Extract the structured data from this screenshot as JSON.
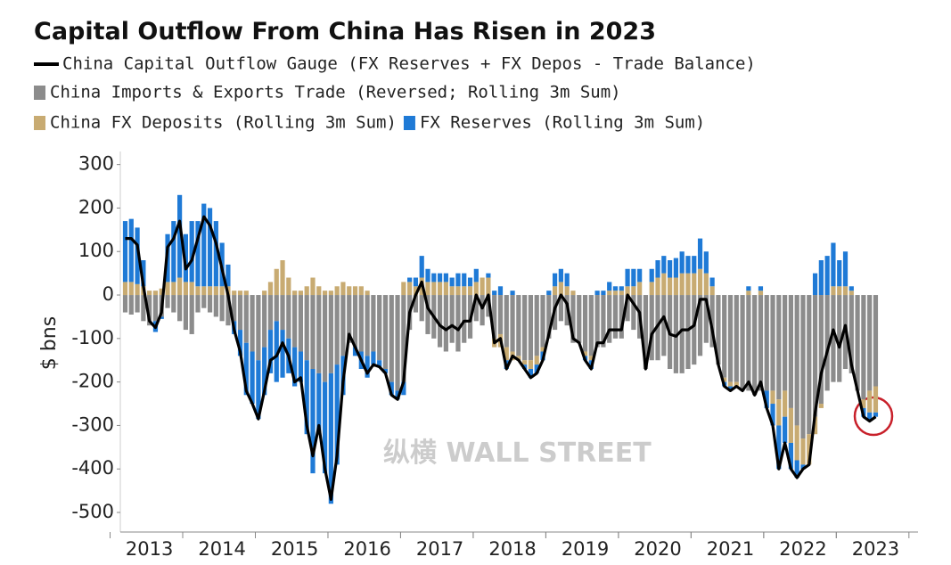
{
  "chart_data": {
    "type": "bar",
    "stacked": true,
    "title": "Capital Outflow From China Has Risen in 2023",
    "y_label": "$ bns",
    "watermark": "纵横 WALL STREET",
    "ylim": [
      -545,
      330
    ],
    "yticks": [
      -500,
      -400,
      -300,
      -200,
      -100,
      0,
      100,
      200,
      300
    ],
    "grid": false,
    "categories": [
      null,
      null,
      null,
      null,
      "2013",
      null,
      null,
      null,
      null,
      null,
      null,
      null,
      null,
      null,
      null,
      null,
      "2014",
      null,
      null,
      null,
      null,
      null,
      null,
      null,
      null,
      null,
      null,
      null,
      "2015",
      null,
      null,
      null,
      null,
      null,
      null,
      null,
      null,
      null,
      null,
      null,
      "2016",
      null,
      null,
      null,
      null,
      null,
      null,
      null,
      null,
      null,
      null,
      null,
      "2017",
      null,
      null,
      null,
      null,
      null,
      null,
      null,
      null,
      null,
      null,
      null,
      "2018",
      null,
      null,
      null,
      null,
      null,
      null,
      null,
      null,
      null,
      null,
      null,
      "2019",
      null,
      null,
      null,
      null,
      null,
      null,
      null,
      null,
      null,
      null,
      null,
      "2020",
      null,
      null,
      null,
      null,
      null,
      null,
      null,
      null,
      null,
      null,
      null,
      "2021",
      null,
      null,
      null,
      null,
      null,
      null,
      null,
      null,
      null,
      null,
      null,
      "2022",
      null,
      null,
      null,
      null,
      null,
      null,
      null,
      null,
      null,
      null,
      null,
      "2023"
    ],
    "series": [
      {
        "name": "China Capital Outflow Gauge (FX Reserves + FX Depos - Trade Balance)",
        "type": "line",
        "color": "#000000",
        "values": [
          130,
          130,
          115,
          20,
          -60,
          -75,
          -40,
          110,
          130,
          170,
          60,
          80,
          130,
          180,
          160,
          120,
          60,
          0,
          -80,
          -130,
          -220,
          -250,
          -285,
          -220,
          -150,
          -140,
          -110,
          -140,
          -200,
          -190,
          -300,
          -370,
          -300,
          -400,
          -470,
          -370,
          -200,
          -90,
          -120,
          -150,
          -180,
          -160,
          -165,
          -180,
          -230,
          -240,
          -200,
          -40,
          0,
          30,
          -30,
          -50,
          -70,
          -80,
          -70,
          -80,
          -60,
          -60,
          0,
          -30,
          0,
          -110,
          -100,
          -170,
          -140,
          -150,
          -170,
          -190,
          -180,
          -150,
          -90,
          -30,
          0,
          -20,
          -100,
          -110,
          -150,
          -170,
          -110,
          -110,
          -80,
          -80,
          -80,
          0,
          -20,
          -40,
          -170,
          -90,
          -70,
          -50,
          -90,
          -95,
          -80,
          -80,
          -70,
          -10,
          -10,
          -80,
          -160,
          -210,
          -220,
          -210,
          -220,
          -200,
          -230,
          -200,
          -260,
          -300,
          -400,
          -340,
          -400,
          -420,
          -400,
          -390,
          -270,
          -180,
          -130,
          -80,
          -120,
          -70,
          -160,
          -220,
          -280,
          -290,
          -280
        ]
      },
      {
        "name": "China Imports & Exports Trade (Reversed; Rolling 3m Sum)",
        "type": "bar",
        "color": "#8c8c8c",
        "values": [
          -40,
          -45,
          -40,
          -60,
          -70,
          -60,
          -50,
          -30,
          -40,
          -60,
          -80,
          -90,
          -40,
          -30,
          -40,
          -50,
          -60,
          -70,
          -60,
          -80,
          -110,
          -130,
          -150,
          -120,
          -80,
          -60,
          -80,
          -100,
          -120,
          -130,
          -150,
          -170,
          -180,
          -200,
          -180,
          -160,
          -140,
          -110,
          -120,
          -130,
          -140,
          -130,
          -150,
          -170,
          -200,
          -220,
          -200,
          -80,
          -40,
          -60,
          -90,
          -100,
          -120,
          -130,
          -110,
          -130,
          -110,
          -100,
          -60,
          -70,
          -50,
          -100,
          -90,
          -120,
          -130,
          -140,
          -150,
          -150,
          -140,
          -120,
          -100,
          -80,
          -60,
          -70,
          -110,
          -110,
          -130,
          -140,
          -120,
          -120,
          -110,
          -100,
          -100,
          -60,
          -80,
          -100,
          -170,
          -150,
          -150,
          -140,
          -170,
          -180,
          -180,
          -170,
          -160,
          -140,
          -110,
          -120,
          -160,
          -190,
          -200,
          -200,
          -220,
          -220,
          -230,
          -220,
          -220,
          -220,
          -240,
          -220,
          -260,
          -300,
          -330,
          -320,
          -280,
          -250,
          -220,
          -200,
          -200,
          -170,
          -180,
          -220,
          -240,
          -220,
          -210
        ]
      },
      {
        "name": "China FX Deposits (Rolling 3m Sum)",
        "type": "bar",
        "color": "#c8ab72",
        "values": [
          30,
          30,
          25,
          20,
          10,
          10,
          15,
          30,
          30,
          40,
          30,
          30,
          20,
          20,
          20,
          20,
          20,
          20,
          10,
          10,
          10,
          0,
          0,
          10,
          30,
          60,
          80,
          40,
          10,
          10,
          20,
          40,
          20,
          10,
          10,
          20,
          30,
          20,
          20,
          20,
          10,
          0,
          0,
          0,
          0,
          0,
          30,
          30,
          20,
          40,
          30,
          30,
          30,
          30,
          20,
          20,
          20,
          20,
          30,
          40,
          40,
          -20,
          -30,
          -30,
          -20,
          -10,
          -10,
          -20,
          -20,
          -10,
          0,
          20,
          30,
          20,
          10,
          0,
          -10,
          -10,
          0,
          0,
          10,
          10,
          10,
          20,
          20,
          30,
          0,
          30,
          40,
          50,
          40,
          40,
          50,
          50,
          50,
          60,
          50,
          20,
          0,
          -10,
          -10,
          -10,
          0,
          10,
          0,
          10,
          0,
          -30,
          -60,
          -60,
          -80,
          -80,
          -60,
          -70,
          -40,
          -10,
          0,
          20,
          20,
          20,
          10,
          0,
          -20,
          -50,
          -60
        ]
      },
      {
        "name": "FX Reserves (Rolling 3m Sum)",
        "type": "bar",
        "color": "#1f7ad6",
        "values": [
          140,
          145,
          130,
          60,
          0,
          -25,
          -5,
          110,
          140,
          190,
          110,
          140,
          150,
          190,
          180,
          150,
          100,
          50,
          -30,
          -60,
          -120,
          -120,
          -135,
          -110,
          -100,
          -140,
          -110,
          -80,
          -90,
          -70,
          -170,
          -240,
          -140,
          -210,
          -300,
          -230,
          -90,
          0,
          -20,
          -40,
          -50,
          -30,
          -15,
          -10,
          -30,
          -20,
          -30,
          10,
          20,
          50,
          30,
          20,
          20,
          20,
          20,
          30,
          30,
          20,
          30,
          0,
          10,
          10,
          20,
          -20,
          10,
          0,
          -10,
          -20,
          -20,
          -20,
          10,
          30,
          30,
          30,
          0,
          0,
          -10,
          -20,
          10,
          10,
          20,
          10,
          10,
          40,
          40,
          30,
          0,
          30,
          40,
          40,
          40,
          45,
          50,
          40,
          40,
          70,
          50,
          20,
          0,
          -10,
          -10,
          0,
          0,
          10,
          0,
          10,
          -40,
          -50,
          -100,
          -60,
          -60,
          -40,
          -10,
          0,
          50,
          80,
          90,
          100,
          60,
          80,
          10,
          0,
          -20,
          -20,
          -10
        ]
      }
    ]
  }
}
